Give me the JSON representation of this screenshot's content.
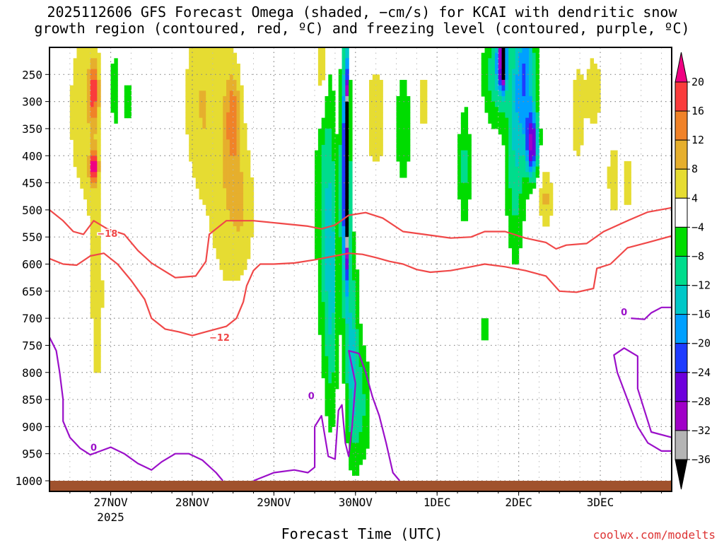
{
  "title_line1": "2025112606 GFS Forecast Omega (shaded, −cm/s) for KCAI with dendritic snow",
  "title_line2": "growth region (contoured, red, ºC) and freezing level (contoured, purple, ºC)",
  "xlabel": "Forecast Time (UTC)",
  "credit": "coolwx.com/modelts",
  "colors": {
    "contour_red": "#f04848",
    "contour_purple": "#9b10c9",
    "ground": "#a0522d",
    "grid": "#888888"
  },
  "chart_data": {
    "type": "heatmap",
    "x_unit": "hours since 2025-11-26 06 UTC",
    "x_range_hours": [
      0,
      183
    ],
    "x_ticks": [
      {
        "h": 18,
        "label": "27NOV",
        "sub": "2025"
      },
      {
        "h": 42,
        "label": "28NOV",
        "sub": ""
      },
      {
        "h": 66,
        "label": "29NOV",
        "sub": ""
      },
      {
        "h": 90,
        "label": "30NOV",
        "sub": ""
      },
      {
        "h": 114,
        "label": "1DEC",
        "sub": ""
      },
      {
        "h": 138,
        "label": "2DEC",
        "sub": ""
      },
      {
        "h": 162,
        "label": "3DEC",
        "sub": ""
      }
    ],
    "y_axis": "pressure (hPa)",
    "y_range": [
      1000,
      200
    ],
    "y_ticks": [
      250,
      300,
      350,
      400,
      450,
      500,
      550,
      600,
      650,
      700,
      750,
      800,
      850,
      900,
      950,
      1000
    ],
    "colorbar": {
      "levels": [
        -36,
        -32,
        -28,
        -24,
        -20,
        -16,
        -12,
        -8,
        -4,
        4,
        8,
        12,
        16,
        20
      ],
      "labels": [
        "20",
        "16",
        "12",
        "8",
        "4",
        "−4",
        "−8",
        "−12",
        "−16",
        "−20",
        "−24",
        "−28",
        "−32",
        "−36"
      ],
      "colors": [
        "#000000",
        "#b4b4b4",
        "#a000c8",
        "#6e00dc",
        "#1e3cff",
        "#00a0ff",
        "#00c8c8",
        "#00dc8c",
        "#00dc00",
        "#ffffff",
        "#e6dc32",
        "#e6af2d",
        "#f08228",
        "#fa3c3c",
        "#f00082"
      ]
    },
    "omega_blobs": [
      {
        "h": 10,
        "p": 320,
        "w": 6,
        "hp": 200,
        "v": 6
      },
      {
        "h": 13,
        "p": 280,
        "w": 1.5,
        "hp": 60,
        "v": 14
      },
      {
        "h": 13,
        "p": 420,
        "w": 1.2,
        "hp": 30,
        "v": 18
      },
      {
        "h": 14,
        "p": 680,
        "w": 3,
        "hp": 280,
        "v": 5
      },
      {
        "h": 19,
        "p": 280,
        "w": 1.5,
        "hp": 140,
        "v": -6
      },
      {
        "h": 23,
        "p": 300,
        "w": 1.2,
        "hp": 60,
        "v": -6
      },
      {
        "h": 44,
        "p": 300,
        "w": 5,
        "hp": 180,
        "v": 7
      },
      {
        "h": 52,
        "p": 420,
        "w": 6,
        "hp": 260,
        "v": 7
      },
      {
        "h": 54,
        "p": 330,
        "w": 2,
        "hp": 80,
        "v": 10
      },
      {
        "h": 57,
        "p": 500,
        "w": 4,
        "hp": 120,
        "v": 5
      },
      {
        "h": 80,
        "p": 230,
        "w": 1.5,
        "hp": 90,
        "v": 12
      },
      {
        "h": 81,
        "p": 480,
        "w": 3,
        "hp": 300,
        "v": -9
      },
      {
        "h": 83,
        "p": 650,
        "w": 2,
        "hp": 250,
        "v": -10
      },
      {
        "h": 87,
        "p": 430,
        "w": 1.3,
        "hp": 220,
        "v": -26
      },
      {
        "h": 87.5,
        "p": 420,
        "w": 0.5,
        "hp": 150,
        "v": -38
      },
      {
        "h": 89,
        "p": 760,
        "w": 2,
        "hp": 200,
        "v": -12
      },
      {
        "h": 92,
        "p": 860,
        "w": 3,
        "hp": 120,
        "v": -8
      },
      {
        "h": 96,
        "p": 330,
        "w": 3,
        "hp": 100,
        "v": 8
      },
      {
        "h": 104,
        "p": 350,
        "w": 3,
        "hp": 150,
        "v": -6
      },
      {
        "h": 110,
        "p": 300,
        "w": 1.5,
        "hp": 80,
        "v": 6
      },
      {
        "h": 122,
        "p": 420,
        "w": 2,
        "hp": 120,
        "v": -9
      },
      {
        "h": 128,
        "p": 720,
        "w": 1,
        "hp": 60,
        "v": -6
      },
      {
        "h": 131,
        "p": 250,
        "w": 4,
        "hp": 100,
        "v": -10
      },
      {
        "h": 133,
        "p": 220,
        "w": 1.5,
        "hp": 60,
        "v": -20
      },
      {
        "h": 133.5,
        "p": 220,
        "w": 0.7,
        "hp": 40,
        "v": -38
      },
      {
        "h": 137,
        "p": 400,
        "w": 3,
        "hp": 200,
        "v": -11
      },
      {
        "h": 140,
        "p": 250,
        "w": 3,
        "hp": 120,
        "v": -18
      },
      {
        "h": 142,
        "p": 380,
        "w": 1.8,
        "hp": 60,
        "v": -26
      },
      {
        "h": 146,
        "p": 480,
        "w": 2,
        "hp": 60,
        "v": 9
      },
      {
        "h": 155,
        "p": 330,
        "w": 2,
        "hp": 100,
        "v": 6
      },
      {
        "h": 160,
        "p": 280,
        "w": 4,
        "hp": 120,
        "v": 5
      },
      {
        "h": 166,
        "p": 450,
        "w": 3,
        "hp": 120,
        "v": 5
      },
      {
        "h": 170,
        "p": 450,
        "w": 1,
        "hp": 50,
        "v": 8
      }
    ],
    "contours": [
      {
        "name": "-18",
        "color": "#f04848",
        "label": "−18",
        "label_at": [
          17,
          543
        ],
        "points": [
          [
            0,
            500
          ],
          [
            4,
            520
          ],
          [
            7,
            540
          ],
          [
            10,
            545
          ],
          [
            13,
            520
          ],
          [
            17,
            535
          ],
          [
            22,
            545
          ],
          [
            26,
            575
          ],
          [
            30,
            598
          ],
          [
            37,
            625
          ],
          [
            43,
            622
          ],
          [
            46,
            595
          ],
          [
            47,
            545
          ],
          [
            52,
            520
          ],
          [
            60,
            520
          ],
          [
            68,
            525
          ],
          [
            76,
            530
          ],
          [
            80,
            535
          ],
          [
            84,
            528
          ],
          [
            88,
            510
          ],
          [
            93,
            505
          ],
          [
            98,
            515
          ],
          [
            104,
            540
          ],
          [
            110,
            545
          ],
          [
            118,
            552
          ],
          [
            124,
            550
          ],
          [
            128,
            540
          ],
          [
            134,
            540
          ],
          [
            140,
            552
          ],
          [
            146,
            560
          ],
          [
            149,
            572
          ],
          [
            152,
            565
          ],
          [
            158,
            562
          ],
          [
            163,
            540
          ],
          [
            170,
            520
          ],
          [
            176,
            504
          ],
          [
            183,
            496
          ]
        ]
      },
      {
        "name": "-12",
        "color": "#f04848",
        "label": "−12",
        "label_at": [
          50,
          735
        ],
        "points": [
          [
            0,
            590
          ],
          [
            4,
            600
          ],
          [
            8,
            602
          ],
          [
            12,
            585
          ],
          [
            16,
            580
          ],
          [
            20,
            600
          ],
          [
            24,
            630
          ],
          [
            28,
            665
          ],
          [
            30,
            700
          ],
          [
            34,
            720
          ],
          [
            38,
            725
          ],
          [
            42,
            732
          ],
          [
            46,
            725
          ],
          [
            52,
            715
          ],
          [
            55,
            700
          ],
          [
            57,
            670
          ],
          [
            58,
            640
          ],
          [
            60,
            612
          ],
          [
            62,
            600
          ],
          [
            66,
            600
          ],
          [
            72,
            598
          ],
          [
            78,
            592
          ],
          [
            84,
            585
          ],
          [
            88,
            580
          ],
          [
            92,
            582
          ],
          [
            96,
            588
          ],
          [
            100,
            595
          ],
          [
            104,
            600
          ],
          [
            108,
            610
          ],
          [
            112,
            615
          ],
          [
            118,
            612
          ],
          [
            124,
            605
          ],
          [
            128,
            600
          ],
          [
            134,
            605
          ],
          [
            140,
            612
          ],
          [
            146,
            622
          ],
          [
            150,
            650
          ],
          [
            155,
            652
          ],
          [
            160,
            645
          ],
          [
            161,
            608
          ],
          [
            165,
            600
          ],
          [
            170,
            570
          ],
          [
            176,
            560
          ],
          [
            183,
            548
          ]
        ]
      },
      {
        "name": "0-a",
        "color": "#9b10c9",
        "label": "0",
        "label_at": [
          13,
          938
        ],
        "points": [
          [
            0,
            735
          ],
          [
            2,
            760
          ],
          [
            3,
            800
          ],
          [
            4,
            850
          ],
          [
            4,
            890
          ],
          [
            6,
            920
          ],
          [
            9,
            940
          ],
          [
            12,
            952
          ],
          [
            15,
            945
          ],
          [
            18,
            938
          ],
          [
            22,
            950
          ],
          [
            26,
            968
          ],
          [
            30,
            980
          ],
          [
            33,
            965
          ],
          [
            37,
            950
          ],
          [
            41,
            950
          ],
          [
            45,
            962
          ],
          [
            49,
            985
          ],
          [
            51,
            1000
          ]
        ]
      },
      {
        "name": "0-b",
        "color": "#9b10c9",
        "label": "0",
        "label_at": [
          77,
          843
        ],
        "points": [
          [
            60,
            1000
          ],
          [
            66,
            985
          ],
          [
            72,
            980
          ],
          [
            76,
            985
          ],
          [
            78,
            975
          ],
          [
            78,
            900
          ],
          [
            80,
            880
          ],
          [
            82,
            955
          ],
          [
            84,
            960
          ],
          [
            85,
            870
          ],
          [
            86,
            860
          ],
          [
            87,
            930
          ],
          [
            88,
            955
          ],
          [
            89,
            900
          ],
          [
            90,
            820
          ],
          [
            88,
            760
          ],
          [
            91,
            765
          ],
          [
            93,
            800
          ],
          [
            95,
            845
          ],
          [
            97,
            880
          ],
          [
            99,
            930
          ],
          [
            101,
            985
          ],
          [
            103,
            1000
          ]
        ]
      },
      {
        "name": "0-c",
        "color": "#9b10c9",
        "label": "0",
        "label_at": [
          169,
          688
        ],
        "points": [
          [
            171,
            700
          ],
          [
            175,
            702
          ],
          [
            177,
            690
          ],
          [
            180,
            680
          ],
          [
            183,
            680
          ]
        ]
      },
      {
        "name": "0-d",
        "color": "#9b10c9",
        "label": "",
        "points": [
          [
            183,
            920
          ],
          [
            177,
            910
          ],
          [
            175,
            870
          ],
          [
            173,
            830
          ],
          [
            173,
            770
          ],
          [
            169,
            755
          ],
          [
            166,
            768
          ],
          [
            167,
            800
          ],
          [
            170,
            850
          ],
          [
            173,
            900
          ],
          [
            176,
            930
          ],
          [
            180,
            945
          ],
          [
            183,
            945
          ]
        ]
      }
    ]
  }
}
